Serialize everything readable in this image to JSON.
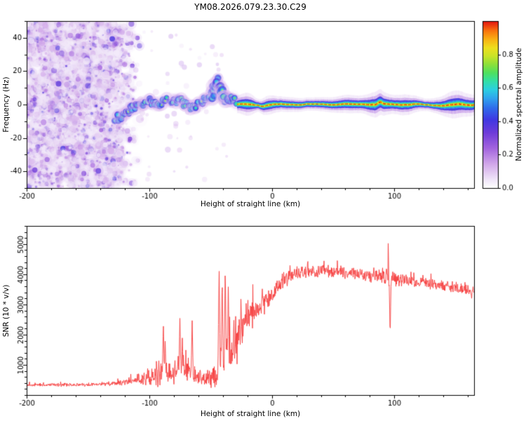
{
  "figure": {
    "background": "#ffffff",
    "text_color": "#000000"
  },
  "chart_data": [
    {
      "type": "heatmap",
      "title": "YM08.2026.079.23.30.C29",
      "xlabel": "Height of straight line (km)",
      "ylabel": "Frequency (Hz)",
      "xlim": [
        -200,
        165
      ],
      "ylim": [
        -50,
        50
      ],
      "xticks": [
        -200,
        -100,
        0,
        100
      ],
      "xtick_minor_step": 20,
      "yticks": [
        -40,
        -20,
        0,
        20,
        40
      ],
      "ytick_minor_step": 10,
      "colorbar": {
        "label": "Normalized spectral amplitude",
        "ticks": [
          0.0,
          0.2,
          0.4,
          0.6,
          0.8
        ],
        "vmin": 0.0,
        "vmax": 1.0,
        "colormap_stops": [
          [
            0,
            "#ffffff"
          ],
          [
            0.05,
            "#f0e6f9"
          ],
          [
            0.14,
            "#d3aaea"
          ],
          [
            0.24,
            "#a263de"
          ],
          [
            0.33,
            "#6f3cd9"
          ],
          [
            0.41,
            "#4038e2"
          ],
          [
            0.48,
            "#2f6ceb"
          ],
          [
            0.54,
            "#2fa6ee"
          ],
          [
            0.59,
            "#2bd0e0"
          ],
          [
            0.64,
            "#33dfa6"
          ],
          [
            0.69,
            "#4fe15e"
          ],
          [
            0.74,
            "#8ce03a"
          ],
          [
            0.79,
            "#c9e428"
          ],
          [
            0.84,
            "#eedf1e"
          ],
          [
            0.89,
            "#f9b113"
          ],
          [
            0.94,
            "#f9760d"
          ],
          [
            1.0,
            "#e31111"
          ]
        ]
      },
      "noise_region": {
        "km_start": -200,
        "km_full_until": -132,
        "km_end": -104,
        "count": 4200,
        "max_intensity": 0.36
      },
      "sparse_blobs": {
        "km_start": -130,
        "km_end": -35,
        "count": 70,
        "max_intensity": 0.16
      },
      "trace": {
        "keypoints": [
          [
            -128,
            -9
          ],
          [
            -121,
            -6
          ],
          [
            -116,
            -3
          ],
          [
            -110,
            -1
          ],
          [
            -104,
            1
          ],
          [
            -99,
            2
          ],
          [
            -95,
            0
          ],
          [
            -90,
            1
          ],
          [
            -85,
            3
          ],
          [
            -80,
            2
          ],
          [
            -75,
            3
          ],
          [
            -70,
            0
          ],
          [
            -66,
            -2
          ],
          [
            -62,
            -1
          ],
          [
            -58,
            1
          ],
          [
            -54,
            3
          ],
          [
            -50,
            5
          ],
          [
            -47,
            8
          ],
          [
            -44,
            13
          ],
          [
            -41,
            9
          ],
          [
            -38,
            4
          ],
          [
            -35,
            2
          ],
          [
            -32,
            4
          ],
          [
            -29,
            1
          ],
          [
            -27,
            0
          ]
        ],
        "cluster_km": [
          -50,
          -36
        ],
        "step_km": 1.5
      },
      "band": {
        "km_start": -28,
        "km_end": 165,
        "wobble_hz": 0.9,
        "layers": [
          {
            "hz": 4.6,
            "t": 0.1,
            "alpha": 0.28
          },
          {
            "hz": 3.1,
            "t": 0.2,
            "alpha": 0.45
          },
          {
            "hz": 2.0,
            "t": 0.4,
            "alpha": 0.95
          },
          {
            "hz": 1.35,
            "t": 0.52,
            "alpha": 1
          },
          {
            "hz": 0.92,
            "t": 0.62,
            "alpha": 1
          },
          {
            "hz": 0.6,
            "t": 0.72,
            "alpha": 1
          },
          {
            "hz": 0.4,
            "t": 0.84,
            "alpha": 1
          },
          {
            "hz": 0.22,
            "t": 0.97,
            "alpha": 1,
            "dashed": true
          }
        ],
        "bulges": [
          {
            "km": -20,
            "extra": 0.5,
            "sigma": 5
          },
          {
            "km": -12,
            "extra": -0.3,
            "sigma": 3
          },
          {
            "km": -3,
            "extra": 0.25,
            "sigma": 4
          },
          {
            "km": 30,
            "extra": -0.15,
            "sigma": 10
          },
          {
            "km": 62,
            "extra": 0.2,
            "sigma": 6
          },
          {
            "km": 86,
            "extra": 0.7,
            "sigma": 7
          },
          {
            "km": 108,
            "extra": 0.35,
            "sigma": 6
          },
          {
            "km": 126,
            "extra": -0.2,
            "sigma": 5
          },
          {
            "km": 149,
            "extra": 0.8,
            "sigma": 7
          },
          {
            "km": 163,
            "extra": 0.3,
            "sigma": 5
          }
        ],
        "offsets": [
          {
            "km": 88,
            "dhz": 1.4,
            "sigma": 1.6
          },
          {
            "km": -8,
            "dhz": -0.8,
            "sigma": 2
          }
        ]
      }
    },
    {
      "type": "line",
      "xlabel": "Height of straight line (km)",
      "ylabel": "SNR (10 * v/v)",
      "xlim": [
        -200,
        165
      ],
      "ylim": [
        0,
        5600
      ],
      "xticks": [
        -200,
        -100,
        0,
        100
      ],
      "xtick_minor_step": 20,
      "yticks": [
        1000,
        2000,
        3000,
        4000,
        5000
      ],
      "ytick_minor_step": 200,
      "series": [
        {
          "name": "SNR",
          "color": "#f63b3b",
          "envelope": [
            [
              -200,
              330,
              60
            ],
            [
              -150,
              340,
              70
            ],
            [
              -130,
              380,
              90
            ],
            [
              -120,
              420,
              120
            ],
            [
              -110,
              500,
              200
            ],
            [
              -100,
              550,
              350
            ],
            [
              -92,
              700,
              600
            ],
            [
              -88,
              800,
              700
            ],
            [
              -82,
              600,
              400
            ],
            [
              -75,
              800,
              700
            ],
            [
              -68,
              900,
              700
            ],
            [
              -62,
              600,
              350
            ],
            [
              -55,
              550,
              300
            ],
            [
              -50,
              600,
              400
            ],
            [
              -45,
              700,
              600
            ],
            [
              -42,
              900,
              900
            ],
            [
              -38,
              1100,
              1100
            ],
            [
              -34,
              1300,
              1000
            ],
            [
              -30,
              1600,
              900
            ],
            [
              -26,
              2000,
              800
            ],
            [
              -22,
              2400,
              700
            ],
            [
              -18,
              2600,
              600
            ],
            [
              -14,
              2800,
              500
            ],
            [
              -10,
              2900,
              500
            ],
            [
              -5,
              3100,
              450
            ],
            [
              0,
              3300,
              400
            ],
            [
              5,
              3600,
              350
            ],
            [
              10,
              3800,
              300
            ],
            [
              15,
              3950,
              280
            ],
            [
              20,
              4050,
              250
            ],
            [
              30,
              4100,
              250
            ],
            [
              40,
              4120,
              240
            ],
            [
              50,
              4100,
              240
            ],
            [
              60,
              4050,
              230
            ],
            [
              70,
              4000,
              230
            ],
            [
              80,
              3950,
              250
            ],
            [
              90,
              3950,
              300
            ],
            [
              95,
              3900,
              350
            ],
            [
              100,
              3850,
              300
            ],
            [
              110,
              3800,
              250
            ],
            [
              120,
              3750,
              230
            ],
            [
              130,
              3700,
              220
            ],
            [
              140,
              3650,
              220
            ],
            [
              150,
              3550,
              220
            ],
            [
              160,
              3450,
              220
            ],
            [
              165,
              3400,
              220
            ]
          ],
          "spikes": [
            {
              "km": -88.5,
              "v": 2400
            },
            {
              "km": -87,
              "v": 1800
            },
            {
              "km": -75,
              "v": 2550
            },
            {
              "km": -73,
              "v": 1900
            },
            {
              "km": -65,
              "v": 2500
            },
            {
              "km": -43,
              "v": 4250
            },
            {
              "km": -40.5,
              "v": 3950
            },
            {
              "km": -38,
              "v": 4300
            },
            {
              "km": -35.5,
              "v": 3650
            },
            {
              "km": -31,
              "v": 2600
            },
            {
              "km": 95,
              "v": 5400
            }
          ],
          "dips": [
            {
              "km": 96.5,
              "v": 1900
            }
          ]
        }
      ]
    }
  ]
}
